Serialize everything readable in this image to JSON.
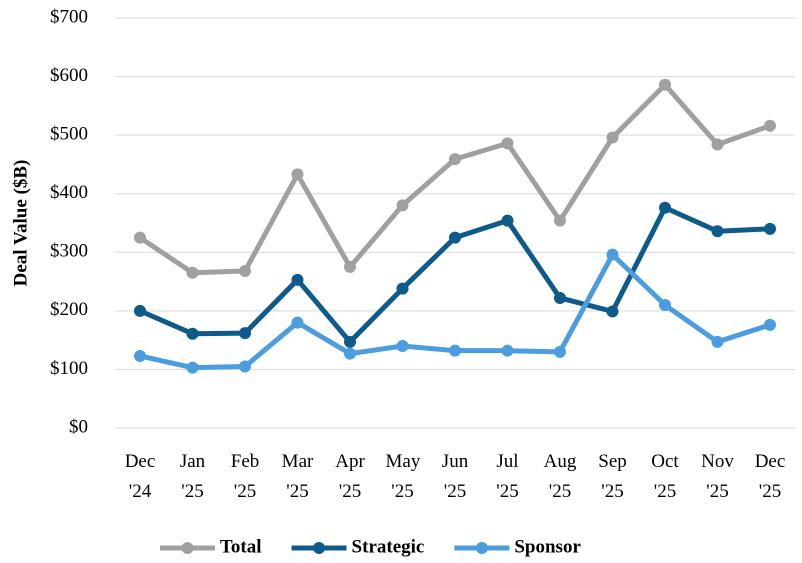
{
  "chart_data": {
    "type": "line",
    "y_label": "Deal Value ($B)",
    "categories": [
      "Dec '24",
      "Jan '25",
      "Feb '25",
      "Mar '25",
      "Apr '25",
      "May '25",
      "Jun '25",
      "Jul '25",
      "Aug '25",
      "Sep '25",
      "Oct '25",
      "Nov '25",
      "Dec '25"
    ],
    "series": [
      {
        "name": "Total",
        "color": "#a0a0a0",
        "values": [
          325,
          265,
          268,
          433,
          275,
          380,
          459,
          486,
          354,
          496,
          586,
          484,
          516
        ]
      },
      {
        "name": "Strategic",
        "color": "#0e5a8a",
        "values": [
          200,
          161,
          162,
          253,
          147,
          238,
          325,
          354,
          222,
          199,
          376,
          336,
          340
        ]
      },
      {
        "name": "Sponsor",
        "color": "#4b9de0",
        "values": [
          123,
          103,
          105,
          180,
          127,
          140,
          132,
          132,
          130,
          296,
          210,
          147,
          176
        ]
      }
    ],
    "ylim": [
      0,
      700
    ],
    "yticks": [
      {
        "value": 0,
        "label": "$0"
      },
      {
        "value": 100,
        "label": "$100"
      },
      {
        "value": 200,
        "label": "$200"
      },
      {
        "value": 300,
        "label": "$300"
      },
      {
        "value": 400,
        "label": "$400"
      },
      {
        "value": 500,
        "label": "$500"
      },
      {
        "value": 600,
        "label": "$600"
      },
      {
        "value": 700,
        "label": "$700"
      }
    ],
    "grid": true,
    "legend": "bottom"
  }
}
